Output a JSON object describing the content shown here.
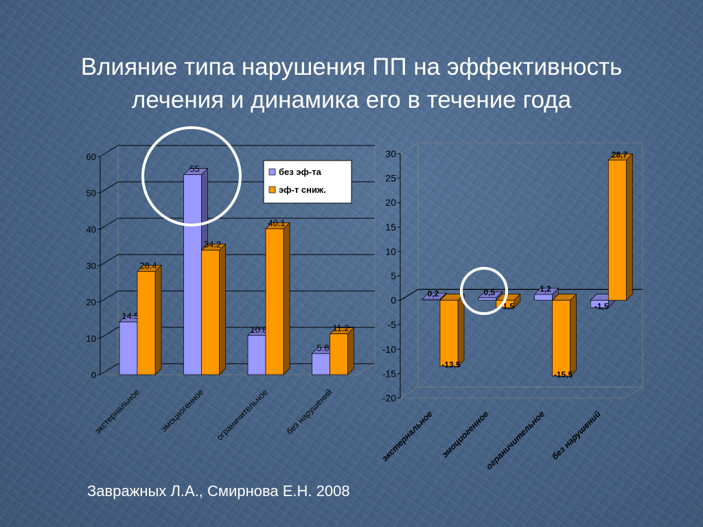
{
  "slide": {
    "title_lines": [
      "Влияние типа нарушения ПП на эффективность",
      "лечения и динамика его  в течение года"
    ],
    "footer": "Завражных Л.А., Смирнова Е.Н. 2008"
  },
  "chart_data": [
    {
      "type": "bar",
      "categories": [
        "экстернальное",
        "эмоциогенное",
        "ограничительное",
        "без нарушений"
      ],
      "series": [
        {
          "name": "без эф-та",
          "values": [
            14.5,
            55,
            10.8,
            5.8
          ],
          "labels": [
            "14.5",
            "55",
            "10.8",
            "5.8"
          ],
          "color": "#9999ff"
        },
        {
          "name": "эф-т сниж.",
          "values": [
            28.4,
            34.2,
            40.1,
            11.2
          ],
          "labels": [
            "28.4",
            "34.2",
            "40.1",
            "11.2"
          ],
          "color": "#ff9900"
        }
      ],
      "ylim": [
        0,
        60
      ],
      "yticks": [
        0,
        10,
        20,
        30,
        40,
        50,
        60
      ],
      "grid": true,
      "legend": "top-right",
      "highlight": "эмоциогенное",
      "colors": {
        "grid": "#000000",
        "text": "#000000"
      }
    },
    {
      "type": "bar",
      "categories": [
        "экстернальное",
        "эмоциогенное",
        "ограничительное",
        "без нарушений"
      ],
      "series": [
        {
          "values": [
            0.2,
            0.5,
            1.2,
            -1.5
          ],
          "labels": [
            "0,2",
            "0,5",
            "1,2",
            "-1,5"
          ],
          "color": "#9999ff"
        },
        {
          "values": [
            -13.5,
            -1.5,
            -15.5,
            28.7
          ],
          "labels": [
            "-13,5",
            "-1,5",
            "-15,5",
            "28,7"
          ],
          "color": "#ff9900"
        }
      ],
      "ylim": [
        -20,
        30
      ],
      "yticks": [
        -20,
        -15,
        -10,
        -5,
        0,
        5,
        10,
        15,
        20,
        25,
        30
      ],
      "grid": false,
      "legend": "none",
      "highlight": "эмоциогенное",
      "colors": {
        "text": "#000000"
      }
    }
  ]
}
